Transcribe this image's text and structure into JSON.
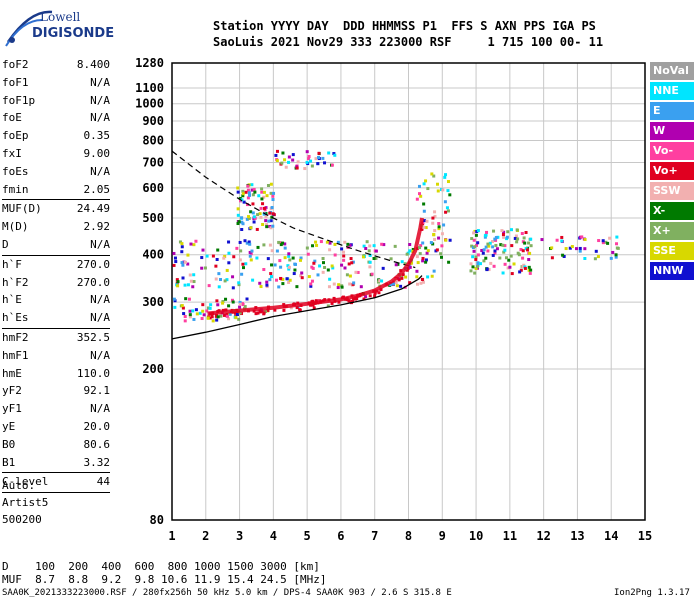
{
  "logo": {
    "line1": "Lowell",
    "line2": "DIGISONDE"
  },
  "header": {
    "row1": "Station YYYY DAY  DDD HHMMSS P1  FFS S AXN PPS IGA PS",
    "row2": "SaoLuis 2021 Nov29 333 223000 RSF     1 715 100 00- 11"
  },
  "params_group1": [
    {
      "label": "foF2",
      "value": "8.400"
    },
    {
      "label": "foF1",
      "value": "N/A"
    },
    {
      "label": "foF1p",
      "value": "N/A"
    },
    {
      "label": "foE",
      "value": "N/A"
    },
    {
      "label": "foEp",
      "value": "0.35"
    },
    {
      "label": "fxI",
      "value": "9.00"
    },
    {
      "label": "foEs",
      "value": "N/A"
    },
    {
      "label": "fmin",
      "value": "2.05"
    }
  ],
  "params_group2": [
    {
      "label": "MUF(D)",
      "value": "24.49"
    },
    {
      "label": "M(D)",
      "value": "2.92"
    },
    {
      "label": "D",
      "value": "N/A"
    }
  ],
  "params_group3": [
    {
      "label": "h`F",
      "value": "270.0"
    },
    {
      "label": "h`F2",
      "value": "270.0"
    },
    {
      "label": "h`E",
      "value": "N/A"
    },
    {
      "label": "h`Es",
      "value": "N/A"
    }
  ],
  "params_group4": [
    {
      "label": "hmF2",
      "value": "352.5"
    },
    {
      "label": "hmF1",
      "value": "N/A"
    },
    {
      "label": "hmE",
      "value": "110.0"
    },
    {
      "label": "yF2",
      "value": "92.1"
    },
    {
      "label": "yF1",
      "value": "N/A"
    },
    {
      "label": "yE",
      "value": "20.0"
    },
    {
      "label": "B0",
      "value": "80.6"
    },
    {
      "label": "B1",
      "value": "3.32"
    }
  ],
  "params_group5": [
    {
      "label": "C-level",
      "value": "44"
    }
  ],
  "auto": {
    "line1": "Auto:",
    "line2": "Artist5",
    "line3": "500200"
  },
  "legend": [
    {
      "label": "NoVal",
      "color": "#a0a0a0"
    },
    {
      "label": "NNE",
      "color": "#00e5ff"
    },
    {
      "label": "E",
      "color": "#3aa0f0"
    },
    {
      "label": "W",
      "color": "#b000b0"
    },
    {
      "label": "Vo-",
      "color": "#ff3fa0"
    },
    {
      "label": "Vo+",
      "color": "#e00020"
    },
    {
      "label": "SSW",
      "color": "#f2b0b0"
    },
    {
      "label": "X-",
      "color": "#007a00"
    },
    {
      "label": "X+",
      "color": "#80b060"
    },
    {
      "label": "SSE",
      "color": "#d8d800"
    },
    {
      "label": "NNW",
      "color": "#1010d0"
    }
  ],
  "footer": {
    "d_row": "D    100  200  400  600  800 1000 1500 3000 [km]",
    "muf_row": "MUF  8.7  8.8  9.2  9.8 10.6 11.9 15.4 24.5 [MHz]",
    "info": "SAA0K_2021333223000.RSF / 280fx256h 50 kHz 5.0 km / DPS-4 SAA0K 903 / 2.6 S 315.8 E",
    "version": "Ion2Png 1.3.17"
  },
  "chart_data": {
    "type": "scatter",
    "title": "",
    "xlabel": "",
    "ylabel": "",
    "xlim": [
      1,
      15
    ],
    "ylim": [
      80,
      1280
    ],
    "yscale": "log",
    "x_ticks": [
      "1",
      "2",
      "3",
      "4",
      "5",
      "6",
      "7",
      "8",
      "9",
      "10",
      "11",
      "12",
      "13",
      "14",
      "15"
    ],
    "y_ticks": [
      "80",
      "200",
      "300",
      "400",
      "500",
      "600",
      "700",
      "800",
      "900",
      "1000",
      "1100",
      "1280"
    ],
    "grid": true,
    "legend_placement": "right",
    "trace_O_profile": [
      [
        2.05,
        280
      ],
      [
        3,
        285
      ],
      [
        4,
        290
      ],
      [
        5,
        297
      ],
      [
        6,
        305
      ],
      [
        6.5,
        312
      ],
      [
        7,
        322
      ],
      [
        7.5,
        340
      ],
      [
        7.8,
        358
      ],
      [
        8.0,
        378
      ],
      [
        8.2,
        410
      ],
      [
        8.35,
        470
      ],
      [
        8.4,
        500
      ]
    ],
    "true_height_profile": [
      [
        1,
        240
      ],
      [
        2,
        250
      ],
      [
        3,
        262
      ],
      [
        4,
        275
      ],
      [
        5,
        285
      ],
      [
        6,
        295
      ],
      [
        7,
        308
      ],
      [
        7.8,
        325
      ],
      [
        8.3,
        345
      ],
      [
        8.4,
        352.5
      ]
    ],
    "dashed_profile": [
      [
        1,
        750
      ],
      [
        2,
        640
      ],
      [
        3,
        560
      ],
      [
        3.8,
        510
      ],
      [
        4.6,
        470
      ],
      [
        5.5,
        440
      ],
      [
        6.5,
        410
      ],
      [
        7.5,
        385
      ],
      [
        8.2,
        370
      ]
    ],
    "scatter_clusters": [
      {
        "name": "o-trace",
        "color": "#e00020",
        "x_range": [
          2.0,
          8.4
        ],
        "h_range": [
          272,
          420
        ],
        "count": 140
      },
      {
        "name": "lower-mixed",
        "color": "#1010d0",
        "x_range": [
          1.0,
          3.2
        ],
        "h_range": [
          270,
          310
        ],
        "count": 60
      },
      {
        "name": "spread-f-low",
        "color": "#80b060",
        "x_range": [
          1.0,
          8.8
        ],
        "h_range": [
          330,
          440
        ],
        "count": 260
      },
      {
        "name": "spread-f-high",
        "color": "#b000b0",
        "x_range": [
          2.9,
          4.0
        ],
        "h_range": [
          470,
          620
        ],
        "count": 90
      },
      {
        "name": "high-echoes",
        "color": "#d8d800",
        "x_range": [
          4.0,
          5.8
        ],
        "h_range": [
          680,
          760
        ],
        "count": 40
      },
      {
        "name": "oblique",
        "color": "#ff3fa0",
        "x_range": [
          8.2,
          9.2
        ],
        "h_range": [
          380,
          660
        ],
        "count": 60
      },
      {
        "name": "far",
        "color": "#e00020",
        "x_range": [
          9.8,
          11.6
        ],
        "h_range": [
          360,
          470
        ],
        "count": 120
      },
      {
        "name": "farthest",
        "color": "#3aa0f0",
        "x_range": [
          11.9,
          14.2
        ],
        "h_range": [
          390,
          450
        ],
        "count": 40
      }
    ]
  }
}
